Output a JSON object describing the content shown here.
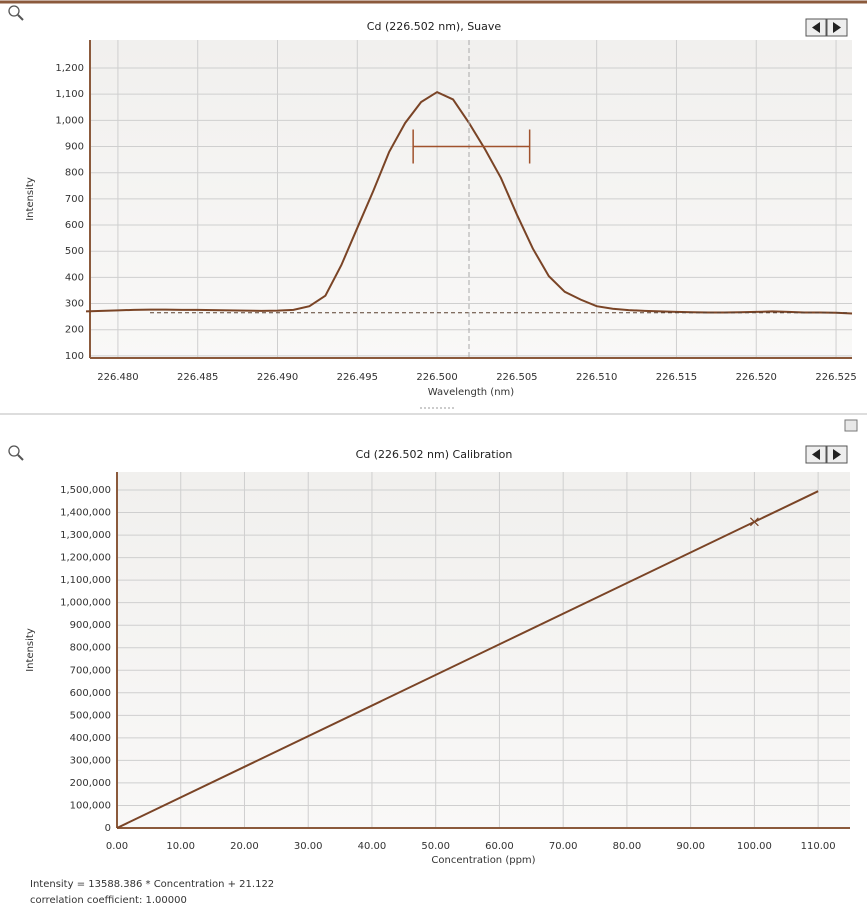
{
  "chart_data": [
    {
      "type": "line",
      "title": "Cd (226.502 nm), Suave",
      "x_label": "Wavelength (nm)",
      "y_label": "Intensity",
      "x": [
        226.478,
        226.479,
        226.48,
        226.481,
        226.482,
        226.483,
        226.484,
        226.485,
        226.486,
        226.487,
        226.488,
        226.489,
        226.49,
        226.491,
        226.492,
        226.493,
        226.494,
        226.495,
        226.496,
        226.497,
        226.498,
        226.499,
        226.5,
        226.501,
        226.502,
        226.503,
        226.504,
        226.505,
        226.506,
        226.507,
        226.508,
        226.509,
        226.51,
        226.511,
        226.512,
        226.513,
        226.514,
        226.515,
        226.516,
        226.517,
        226.518,
        226.519,
        226.52,
        226.521,
        226.522,
        226.523,
        226.524,
        226.525,
        226.526
      ],
      "values": [
        270,
        272,
        274,
        276,
        277,
        277,
        276,
        276,
        275,
        274,
        273,
        272,
        273,
        276,
        290,
        330,
        447,
        589,
        730,
        880,
        990,
        1070,
        1108,
        1080,
        990,
        890,
        780,
        640,
        510,
        405,
        345,
        315,
        290,
        280,
        275,
        272,
        270,
        268,
        267,
        266,
        266,
        267,
        268,
        270,
        268,
        266,
        266,
        265,
        262
      ],
      "color": "#7a4426",
      "background_level": 265,
      "peak_center": 226.502,
      "integration_window": {
        "x": [
          226.4985,
          226.5058
        ],
        "y": 900,
        "color": "#a0522d"
      },
      "xlim": [
        226.47825,
        226.526
      ],
      "ylim": [
        92,
        1307
      ],
      "xticks": [
        {
          "value": 226.48,
          "label": "226.480"
        },
        {
          "value": 226.485,
          "label": "226.485"
        },
        {
          "value": 226.49,
          "label": "226.490"
        },
        {
          "value": 226.495,
          "label": "226.495"
        },
        {
          "value": 226.5,
          "label": "226.500"
        },
        {
          "value": 226.505,
          "label": "226.505"
        },
        {
          "value": 226.51,
          "label": "226.510"
        },
        {
          "value": 226.515,
          "label": "226.515"
        },
        {
          "value": 226.52,
          "label": "226.520"
        },
        {
          "value": 226.525,
          "label": "226.525"
        }
      ],
      "yticks": [
        100,
        200,
        300,
        400,
        500,
        600,
        700,
        800,
        900,
        {
          "value": 1000,
          "label": "1,000"
        },
        {
          "value": 1100,
          "label": "1,100"
        },
        {
          "value": 1200,
          "label": "1,200"
        }
      ],
      "grid": true
    },
    {
      "type": "line",
      "title": "Cd (226.502 nm) Calibration",
      "x_label": "Concentration (ppm)",
      "y_label": "Intensity",
      "x": [
        0,
        110
      ],
      "values": [
        21.122,
        1494743.58
      ],
      "color": "#7a4426",
      "points": {
        "x": [
          100
        ],
        "values": [
          1358859.7
        ]
      },
      "notes": [
        "Intensity = 13588.386 * Concentration + 21.122",
        "correlation coefficient: 1.00000"
      ],
      "xlim": [
        0,
        115
      ],
      "ylim": [
        0,
        1580000
      ],
      "xticks": [
        {
          "value": 0,
          "label": "0.00"
        },
        {
          "value": 10,
          "label": "10.00"
        },
        {
          "value": 20,
          "label": "20.00"
        },
        {
          "value": 30,
          "label": "30.00"
        },
        {
          "value": 40,
          "label": "40.00"
        },
        {
          "value": 50,
          "label": "50.00"
        },
        {
          "value": 60,
          "label": "60.00"
        },
        {
          "value": 70,
          "label": "70.00"
        },
        {
          "value": 80,
          "label": "80.00"
        },
        {
          "value": 90,
          "label": "90.00"
        },
        {
          "value": 100,
          "label": "100.00"
        },
        {
          "value": 110,
          "label": "110.00"
        }
      ],
      "yticks": [
        0,
        {
          "value": 100000,
          "label": "100,000"
        },
        {
          "value": 200000,
          "label": "200,000"
        },
        {
          "value": 300000,
          "label": "300,000"
        },
        {
          "value": 400000,
          "label": "400,000"
        },
        {
          "value": 500000,
          "label": "500,000"
        },
        {
          "value": 600000,
          "label": "600,000"
        },
        {
          "value": 700000,
          "label": "700,000"
        },
        {
          "value": 800000,
          "label": "800,000"
        },
        {
          "value": 900000,
          "label": "900,000"
        },
        {
          "value": 1000000,
          "label": "1,000,000"
        },
        {
          "value": 1100000,
          "label": "1,100,000"
        },
        {
          "value": 1200000,
          "label": "1,200,000"
        },
        {
          "value": 1300000,
          "label": "1,300,000"
        },
        {
          "value": 1400000,
          "label": "1,400,000"
        },
        {
          "value": 1500000,
          "label": "1,500,000"
        }
      ],
      "grid": true
    }
  ]
}
